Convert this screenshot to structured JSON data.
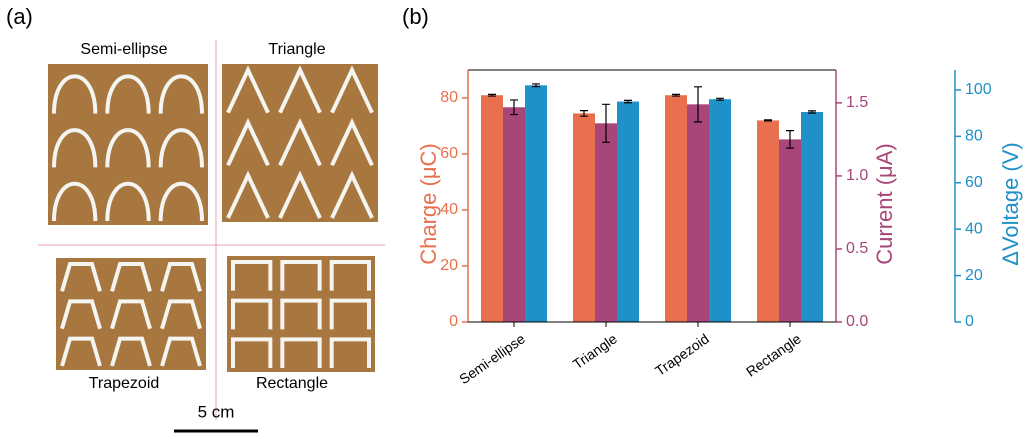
{
  "panel_a": {
    "label": "(a)",
    "shapes": [
      "Semi-ellipse",
      "Triangle",
      "Trapezoid",
      "Rectangle"
    ],
    "scale_bar": "5 cm"
  },
  "chart_data": {
    "type": "bar",
    "panel_label": "(b)",
    "categories": [
      "Semi-ellipse",
      "Triangle",
      "Trapezoid",
      "Rectangle"
    ],
    "series": [
      {
        "name": "Charge (μC)",
        "color": "#e8704e",
        "axis": "y",
        "values": [
          81,
          74.5,
          81,
          72
        ],
        "errors": [
          0.3,
          1,
          0.3,
          0.2
        ]
      },
      {
        "name": "Current (μA)",
        "color": "#a8467a",
        "axis": "y2",
        "values": [
          1.47,
          1.36,
          1.49,
          1.25
        ],
        "errors": [
          0.05,
          0.13,
          0.12,
          0.06
        ]
      },
      {
        "name": "ΔVoltage (V)",
        "color": "#2090c8",
        "axis": "y3",
        "values": [
          102,
          95,
          96,
          90.5
        ],
        "errors": [
          0.6,
          0.5,
          0.4,
          0.5
        ]
      }
    ],
    "ylim": [
      0,
      90
    ],
    "yticks": [
      0,
      20,
      40,
      60,
      80
    ],
    "y2lim": [
      0,
      1.725
    ],
    "y2ticks": [
      {
        "value": 0,
        "label": "0.0"
      },
      0.5,
      {
        "value": 1,
        "label": "1.0"
      },
      1.5
    ],
    "y3lim": [
      0,
      108.6
    ],
    "y3ticks": [
      0,
      20,
      40,
      60,
      80,
      100
    ]
  }
}
